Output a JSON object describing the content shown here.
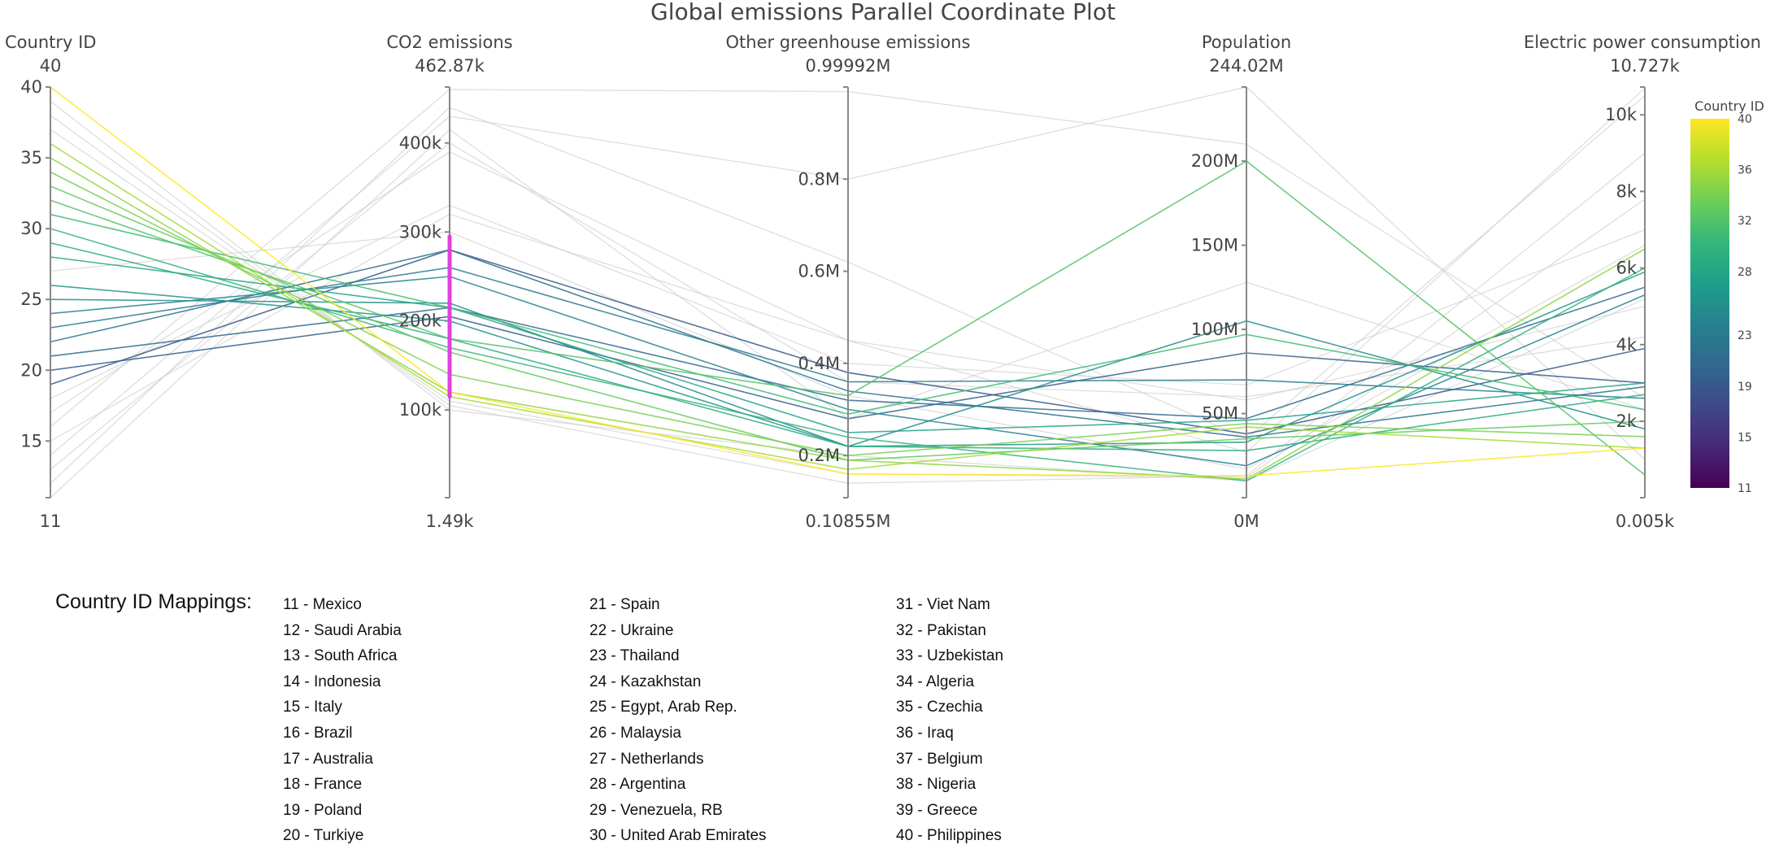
{
  "chart_data": {
    "type": "parallel_coordinates",
    "title": "Global emissions Parallel Coordinate Plot",
    "dimensions": [
      {
        "label": "Country ID",
        "range_max": "40",
        "range_min": "11",
        "min": 11,
        "max": 40,
        "ticks": [
          {
            "v": 15,
            "t": "15"
          },
          {
            "v": 20,
            "t": "20"
          },
          {
            "v": 25,
            "t": "25"
          },
          {
            "v": 30,
            "t": "30"
          },
          {
            "v": 35,
            "t": "35"
          }
        ]
      },
      {
        "label": "CO2 emissions",
        "range_max": "462.87k",
        "range_min": "1.49k",
        "min": 1.49,
        "max": 462.87,
        "constraint": [
          115,
          295
        ],
        "ticks": [
          {
            "v": 100,
            "t": "100k"
          },
          {
            "v": 200,
            "t": "200k"
          },
          {
            "v": 300,
            "t": "300k"
          },
          {
            "v": 400,
            "t": "400k"
          }
        ]
      },
      {
        "label": "Other greenhouse emissions",
        "range_max": "0.99992M",
        "range_min": "0.10855M",
        "min": 0.10855,
        "max": 0.99992,
        "ticks": [
          {
            "v": 0.2,
            "t": "0.2M"
          },
          {
            "v": 0.4,
            "t": "0.4M"
          },
          {
            "v": 0.6,
            "t": "0.6M"
          },
          {
            "v": 0.8,
            "t": "0.8M"
          }
        ]
      },
      {
        "label": "Population",
        "range_max": "244.02M",
        "range_min": "0M",
        "min": 0,
        "max": 244.02,
        "ticks": [
          {
            "v": 50,
            "t": "50M"
          },
          {
            "v": 100,
            "t": "100M"
          },
          {
            "v": 150,
            "t": "150M"
          },
          {
            "v": 200,
            "t": "200M"
          }
        ]
      },
      {
        "label": "Electric power consumption",
        "range_max": "10.727k",
        "range_min": "0.005k",
        "min": 0.005,
        "max": 10.727,
        "ticks": [
          {
            "v": 2,
            "t": "2k"
          },
          {
            "v": 4,
            "t": "4k"
          },
          {
            "v": 6,
            "t": "6k"
          },
          {
            "v": 8,
            "t": "8k"
          },
          {
            "v": 10,
            "t": "10k"
          }
        ]
      }
    ],
    "rows": [
      [
        11,
        415,
        0.28,
        128,
        2.3
      ],
      [
        12,
        440,
        0.62,
        35,
        10.5
      ],
      [
        13,
        400,
        0.36,
        60,
        4.2
      ],
      [
        14,
        430,
        0.8,
        244,
        1.0
      ],
      [
        15,
        320,
        0.45,
        58,
        5.0
      ],
      [
        16,
        460,
        0.99,
        210,
        2.6
      ],
      [
        17,
        390,
        0.45,
        27,
        10.7
      ],
      [
        18,
        330,
        0.4,
        67,
        7.0
      ],
      [
        19,
        280,
        0.38,
        38,
        3.9
      ],
      [
        20,
        205,
        0.28,
        86,
        3.0
      ],
      [
        21,
        215,
        0.32,
        47,
        5.5
      ],
      [
        22,
        280,
        0.34,
        36,
        2.9
      ],
      [
        23,
        260,
        0.36,
        70,
        2.6
      ],
      [
        24,
        250,
        0.3,
        19,
        5.3
      ],
      [
        25,
        220,
        0.22,
        105,
        1.8
      ],
      [
        26,
        200,
        0.22,
        33,
        5.9
      ],
      [
        27,
        300,
        0.33,
        17,
        6.6
      ],
      [
        28,
        215,
        0.25,
        46,
        3.0
      ],
      [
        29,
        180,
        0.22,
        28,
        2.7
      ],
      [
        30,
        170,
        0.24,
        10,
        6.0
      ],
      [
        31,
        215,
        0.29,
        97,
        2.3
      ],
      [
        32,
        180,
        0.33,
        200,
        0.6
      ],
      [
        33,
        165,
        0.19,
        35,
        2.0
      ],
      [
        34,
        140,
        0.2,
        44,
        1.6
      ],
      [
        35,
        120,
        0.19,
        11,
        6.5
      ],
      [
        36,
        115,
        0.17,
        42,
        1.3
      ],
      [
        37,
        110,
        0.16,
        12,
        7.8
      ],
      [
        38,
        105,
        0.14,
        13,
        9.0
      ],
      [
        39,
        100,
        0.2,
        10,
        5.2
      ],
      [
        40,
        120,
        0.16,
        13,
        1.3
      ]
    ],
    "colorbar": {
      "title": "Country ID",
      "min": 11,
      "max": 40,
      "ticks": [
        {
          "v": 11,
          "t": "11"
        },
        {
          "v": 15,
          "t": "15"
        },
        {
          "v": 19,
          "t": "19"
        },
        {
          "v": 23,
          "t": "23"
        },
        {
          "v": 28,
          "t": "28"
        },
        {
          "v": 32,
          "t": "32"
        },
        {
          "v": 36,
          "t": "36"
        },
        {
          "v": 40,
          "t": "40"
        }
      ],
      "colorscale": [
        "#440154",
        "#482878",
        "#3e4989",
        "#31688e",
        "#26828e",
        "#1f9e89",
        "#35b779",
        "#6ece58",
        "#b5de2b",
        "#fde725"
      ]
    },
    "filtered_color": "#d0d0d0",
    "brush_color": "#e040e0"
  },
  "mappings": {
    "title": "Country ID Mappings:",
    "columns": [
      [
        "11 - Mexico",
        "12 - Saudi Arabia",
        "13 - South Africa",
        "14 - Indonesia",
        "15 - Italy",
        "16 - Brazil",
        "17 - Australia",
        "18 - France",
        "19 - Poland",
        "20 - Turkiye"
      ],
      [
        "21 - Spain",
        "22 - Ukraine",
        "23 - Thailand",
        "24 - Kazakhstan",
        "25 - Egypt, Arab Rep.",
        "26 - Malaysia",
        "27 - Netherlands",
        "28 - Argentina",
        "29 - Venezuela, RB",
        "30 - United Arab Emirates"
      ],
      [
        "31 - Viet Nam",
        "32 - Pakistan",
        "33 - Uzbekistan",
        "34 - Algeria",
        "35 - Czechia",
        "36 - Iraq",
        "37 - Belgium",
        "38 - Nigeria",
        "39 - Greece",
        "40 - Philippines"
      ]
    ]
  }
}
